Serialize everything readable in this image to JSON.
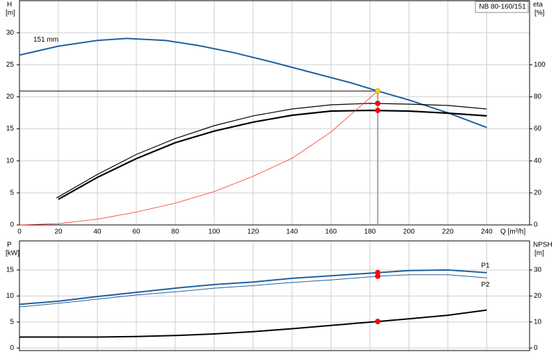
{
  "chart_data": [
    {
      "type": "line",
      "title": "NB 80-160/151",
      "ylabel": "H",
      "yunit": "[m]",
      "y2label": "eta",
      "y2unit": "[%]",
      "xlabel": "Q [m³/h]",
      "xlim": [
        0,
        262
      ],
      "xticks": [
        0,
        20,
        40,
        60,
        80,
        100,
        120,
        140,
        160,
        180,
        200,
        220,
        240
      ],
      "ylim": [
        0,
        35
      ],
      "yticks": [
        0,
        5,
        10,
        15,
        20,
        25,
        30
      ],
      "y2lim": [
        0,
        140
      ],
      "y2ticks": [
        0,
        20,
        40,
        60,
        80,
        100
      ],
      "grid": true,
      "series": [
        {
          "name": "151 mm",
          "color": "#1f5fa0",
          "linewidth": 2,
          "x": [
            0,
            20,
            40,
            55,
            75,
            92,
            110,
            130,
            150,
            170,
            184,
            200,
            220,
            240
          ],
          "values": [
            26.5,
            27.9,
            28.8,
            29.1,
            28.8,
            28.0,
            26.9,
            25.4,
            23.8,
            22.2,
            20.9,
            19.5,
            17.5,
            15.2
          ]
        },
        {
          "color": "#000000",
          "linewidth": 1.2,
          "axis": "y2",
          "x": [
            19,
            40,
            60,
            80,
            100,
            120,
            140,
            160,
            180,
            200,
            220,
            240
          ],
          "values": [
            16.8,
            31.5,
            44,
            53.9,
            62,
            68.1,
            72.4,
            75,
            75.9,
            75.4,
            74.6,
            72.4
          ]
        },
        {
          "color": "#000000",
          "linewidth": 2.2,
          "axis": "y2",
          "x": [
            20,
            40,
            60,
            80,
            100,
            120,
            140,
            160,
            180,
            200,
            220,
            240
          ],
          "values": [
            16,
            29.7,
            41.4,
            51.3,
            58.6,
            64.2,
            68.5,
            71.1,
            71.5,
            71.1,
            69.8,
            68.1
          ]
        },
        {
          "color": "#ff3030",
          "linewidth": 0.8,
          "x": [
            0,
            20,
            40,
            60,
            80,
            100,
            120,
            140,
            160,
            184
          ],
          "values": [
            0,
            0.2,
            0.9,
            2.0,
            3.4,
            5.2,
            7.6,
            10.4,
            14.5,
            20.9
          ]
        }
      ],
      "markers": [
        {
          "x": 184,
          "y": 20.9,
          "color": "#ffd700",
          "guides": true
        },
        {
          "x": 184,
          "y": 75.9,
          "color": "#ff0000",
          "axis": "y2"
        },
        {
          "x": 184,
          "y": 71.5,
          "color": "#ff0000",
          "axis": "y2"
        }
      ]
    },
    {
      "type": "line",
      "ylabel": "P",
      "yunit": "[kW]",
      "y2label": "NPSH",
      "y2unit": "[m]",
      "xlim": [
        0,
        262
      ],
      "xticks": [
        0,
        20,
        40,
        60,
        80,
        100,
        120,
        140,
        160,
        180,
        200,
        220,
        240
      ],
      "ylim": [
        -0.5,
        20.6
      ],
      "yticks": [
        0,
        5,
        10,
        15
      ],
      "y2lim": [
        -1,
        41.2
      ],
      "y2ticks": [
        0,
        10,
        20,
        30
      ],
      "grid": true,
      "series": [
        {
          "name": "P1",
          "color": "#1f5fa0",
          "linewidth": 2,
          "x": [
            0,
            20,
            40,
            60,
            80,
            100,
            120,
            140,
            160,
            184,
            200,
            220,
            240
          ],
          "values": [
            8.4,
            9.0,
            9.9,
            10.7,
            11.5,
            12.2,
            12.7,
            13.4,
            13.9,
            14.5,
            14.9,
            15.0,
            14.5
          ]
        },
        {
          "name": "P2",
          "color": "#1f5fa0",
          "linewidth": 1,
          "x": [
            0,
            20,
            40,
            60,
            80,
            100,
            120,
            140,
            160,
            184,
            200,
            220,
            240
          ],
          "values": [
            7.9,
            8.6,
            9.4,
            10.2,
            10.8,
            11.5,
            12.0,
            12.6,
            13.1,
            13.8,
            14.1,
            14.1,
            13.5
          ]
        },
        {
          "color": "#000000",
          "linewidth": 2,
          "axis": "y2",
          "x": [
            0,
            20,
            40,
            60,
            80,
            100,
            120,
            140,
            160,
            184,
            200,
            220,
            240
          ],
          "values": [
            4.2,
            4.2,
            4.2,
            4.4,
            4.8,
            5.4,
            6.3,
            7.4,
            8.7,
            10.2,
            11.2,
            12.6,
            14.6
          ]
        }
      ],
      "markers": [
        {
          "x": 184,
          "y": 14.5,
          "color": "#ff0000"
        },
        {
          "x": 184,
          "y": 13.8,
          "color": "#ff0000"
        },
        {
          "x": 184,
          "y": 10.2,
          "color": "#ff0000",
          "axis": "y2"
        }
      ]
    }
  ]
}
